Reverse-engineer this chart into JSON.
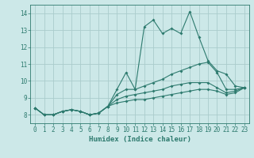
{
  "xlabel": "Humidex (Indice chaleur)",
  "ylabel": "",
  "xlim": [
    -0.5,
    23.5
  ],
  "ylim": [
    7.5,
    14.5
  ],
  "yticks": [
    8,
    9,
    10,
    11,
    12,
    13,
    14
  ],
  "xticks": [
    0,
    1,
    2,
    3,
    4,
    5,
    6,
    7,
    8,
    9,
    10,
    11,
    12,
    13,
    14,
    15,
    16,
    17,
    18,
    19,
    20,
    21,
    22,
    23
  ],
  "bg_color": "#cce8e8",
  "grid_color": "#aacccc",
  "line_color": "#2d7a6e",
  "lines": [
    [
      8.4,
      8.0,
      8.0,
      8.2,
      8.3,
      8.2,
      8.0,
      8.1,
      8.5,
      9.5,
      10.5,
      9.5,
      13.2,
      13.6,
      12.8,
      13.1,
      12.8,
      14.1,
      12.6,
      11.2,
      10.6,
      10.4,
      9.7,
      9.6
    ],
    [
      8.4,
      8.0,
      8.0,
      8.2,
      8.3,
      8.2,
      8.0,
      8.1,
      8.5,
      9.2,
      9.5,
      9.5,
      9.7,
      9.9,
      10.1,
      10.4,
      10.6,
      10.8,
      11.0,
      11.1,
      10.5,
      9.5,
      9.5,
      9.6
    ],
    [
      8.4,
      8.0,
      8.0,
      8.2,
      8.3,
      8.2,
      8.0,
      8.1,
      8.5,
      8.9,
      9.1,
      9.2,
      9.3,
      9.4,
      9.5,
      9.7,
      9.8,
      9.9,
      9.9,
      9.9,
      9.6,
      9.3,
      9.4,
      9.6
    ],
    [
      8.4,
      8.0,
      8.0,
      8.2,
      8.3,
      8.2,
      8.0,
      8.1,
      8.5,
      8.7,
      8.8,
      8.9,
      8.9,
      9.0,
      9.1,
      9.2,
      9.3,
      9.4,
      9.5,
      9.5,
      9.4,
      9.2,
      9.3,
      9.6
    ]
  ]
}
